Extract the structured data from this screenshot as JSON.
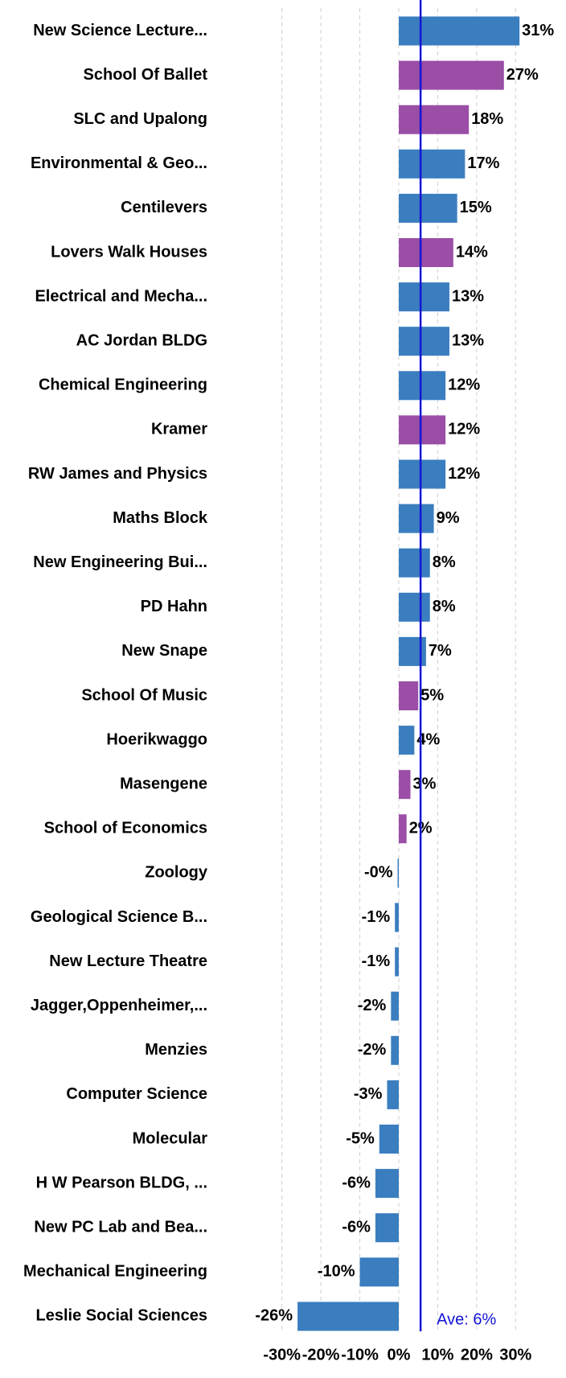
{
  "chart_data": {
    "type": "barh",
    "categories": [
      "New Science Lecture...",
      "School Of Ballet",
      "SLC and Upalong",
      "Environmental & Geo...",
      "Centilevers",
      "Lovers Walk Houses",
      "Electrical and Mecha...",
      "AC Jordan BLDG",
      "Chemical Engineering",
      "Kramer",
      "RW James and Physics",
      "Maths Block",
      "New Engineering Bui...",
      "PD Hahn",
      "New Snape",
      "School Of Music",
      "Hoerikwaggo",
      "Masengene",
      "School of Economics",
      "Zoology",
      "Geological Science B...",
      "New Lecture Theatre",
      "Jagger,Oppenheimer,...",
      "Menzies",
      "Computer Science",
      "Molecular",
      "H W Pearson BLDG, ...",
      "New PC Lab and Bea...",
      "Mechanical Engineering",
      "Leslie Social Sciences"
    ],
    "values": [
      31,
      27,
      18,
      17,
      15,
      14,
      13,
      13,
      12,
      12,
      12,
      9,
      8,
      8,
      7,
      5,
      4,
      3,
      2,
      -0.3,
      -1,
      -1,
      -2,
      -2,
      -3,
      -5,
      -6,
      -6,
      -10,
      -26
    ],
    "value_labels": [
      "31%",
      "27%",
      "18%",
      "17%",
      "15%",
      "14%",
      "13%",
      "13%",
      "12%",
      "12%",
      "12%",
      "9%",
      "8%",
      "8%",
      "7%",
      "5%",
      "4%",
      "3%",
      "2%",
      "-0%",
      "-1%",
      "-1%",
      "-2%",
      "-2%",
      "-3%",
      "-5%",
      "-6%",
      "-6%",
      "-10%",
      "-26%"
    ],
    "colors": [
      "#3a7ebf",
      "#9a4ea6",
      "#9a4ea6",
      "#3a7ebf",
      "#3a7ebf",
      "#9a4ea6",
      "#3a7ebf",
      "#3a7ebf",
      "#3a7ebf",
      "#9a4ea6",
      "#3a7ebf",
      "#3a7ebf",
      "#3a7ebf",
      "#3a7ebf",
      "#3a7ebf",
      "#9a4ea6",
      "#3a7ebf",
      "#9a4ea6",
      "#9a4ea6",
      "#3a7ebf",
      "#3a7ebf",
      "#3a7ebf",
      "#3a7ebf",
      "#3a7ebf",
      "#3a7ebf",
      "#3a7ebf",
      "#3a7ebf",
      "#3a7ebf",
      "#3a7ebf",
      "#3a7ebf"
    ],
    "xlim": [
      -32,
      32
    ],
    "xticks": [
      {
        "value": -30,
        "label": "-30%"
      },
      {
        "value": -20,
        "label": "-20%"
      },
      {
        "value": -10,
        "label": "-10%"
      },
      {
        "value": 0,
        "label": "0%"
      },
      {
        "value": 10,
        "label": "10%"
      },
      {
        "value": 20,
        "label": "20%"
      },
      {
        "value": 30,
        "label": "30%"
      }
    ],
    "grid": true,
    "average": {
      "value": 5.6,
      "label": "Ave: 6%",
      "color": "#1414d4"
    }
  }
}
